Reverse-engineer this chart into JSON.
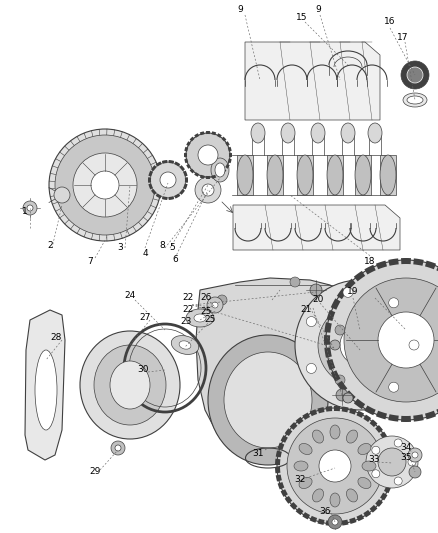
{
  "bg_color": "#ffffff",
  "fig_width": 4.38,
  "fig_height": 5.33,
  "dpi": 100,
  "line_color": "#404040",
  "label_fontsize": 6.5
}
